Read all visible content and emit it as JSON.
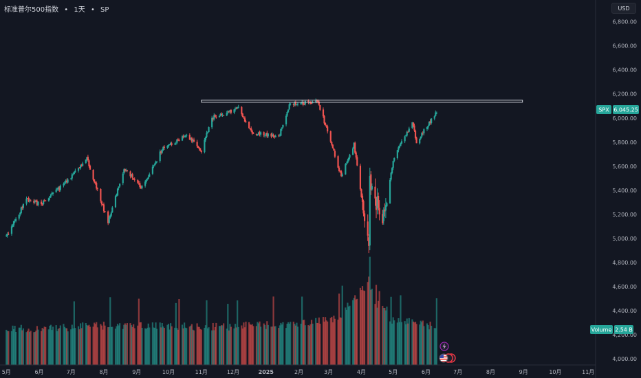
{
  "header": {
    "symbol_name": "标准普尔500指数",
    "interval": "1天",
    "exchange": "SP",
    "separator": "•",
    "currency": "USD"
  },
  "colors": {
    "background": "#131722",
    "up": "#26a69a",
    "down": "#ef5350",
    "axis_text": "#b2b5be",
    "trend_line": "#d1d4dc"
  },
  "icons": [
    "lightning-icon",
    "us-flag-icon",
    "economic-event-icon"
  ],
  "chart_data": {
    "type": "candlestick",
    "symbol": "SPX",
    "last_price": "6,045.25",
    "volume_label": "Volume",
    "volume_value": "2.54 B",
    "price_axis": {
      "range": [
        3950,
        6900
      ],
      "ticks": [
        "6,800.00",
        "6,600.00",
        "6,400.00",
        "6,200.00",
        "6,000.00",
        "5,800.00",
        "5,600.00",
        "5,400.00",
        "5,200.00",
        "5,000.00",
        "4,800.00",
        "4,600.00",
        "4,400.00",
        "4,200.00",
        "4,000.00"
      ]
    },
    "time_axis": {
      "ticks": [
        "5月",
        "6月",
        "7月",
        "8月",
        "9月",
        "10月",
        "11月",
        "12月",
        "2025",
        "2月",
        "3月",
        "4月",
        "5月",
        "6月",
        "7月",
        "8月",
        "9月",
        "10月",
        "11月"
      ],
      "bold_ticks": [
        "2025"
      ]
    },
    "price_path": [
      [
        "2024-05-01",
        5020
      ],
      [
        "2024-05-20",
        5320
      ],
      [
        "2024-06-03",
        5280
      ],
      [
        "2024-06-28",
        5480
      ],
      [
        "2024-07-16",
        5660
      ],
      [
        "2024-07-25",
        5420
      ],
      [
        "2024-08-05",
        5130
      ],
      [
        "2024-08-20",
        5580
      ],
      [
        "2024-09-06",
        5420
      ],
      [
        "2024-09-25",
        5740
      ],
      [
        "2024-10-18",
        5860
      ],
      [
        "2024-11-01",
        5720
      ],
      [
        "2024-11-11",
        6000
      ],
      [
        "2024-12-06",
        6080
      ],
      [
        "2024-12-18",
        5880
      ],
      [
        "2025-01-13",
        5840
      ],
      [
        "2025-01-23",
        6110
      ],
      [
        "2025-02-19",
        6140
      ],
      [
        "2025-03-13",
        5520
      ],
      [
        "2025-03-25",
        5780
      ],
      [
        "2025-04-08",
        4900
      ],
      [
        "2025-04-09",
        5450
      ],
      [
        "2025-04-21",
        5150
      ],
      [
        "2025-05-02",
        5680
      ],
      [
        "2025-05-19",
        5960
      ],
      [
        "2025-05-23",
        5800
      ],
      [
        "2025-06-11",
        6045
      ]
    ],
    "volume_path": [
      [
        "2024-05-01",
        4230
      ],
      [
        "2024-08-05",
        4260
      ],
      [
        "2024-11-01",
        4250
      ],
      [
        "2025-02-01",
        4270
      ],
      [
        "2025-03-10",
        4320
      ],
      [
        "2025-04-07",
        4620
      ],
      [
        "2025-04-25",
        4320
      ],
      [
        "2025-06-11",
        4250
      ]
    ],
    "resistance_line": {
      "price": 6140,
      "from": "2024-11-01",
      "to": "2025-08-31"
    }
  }
}
